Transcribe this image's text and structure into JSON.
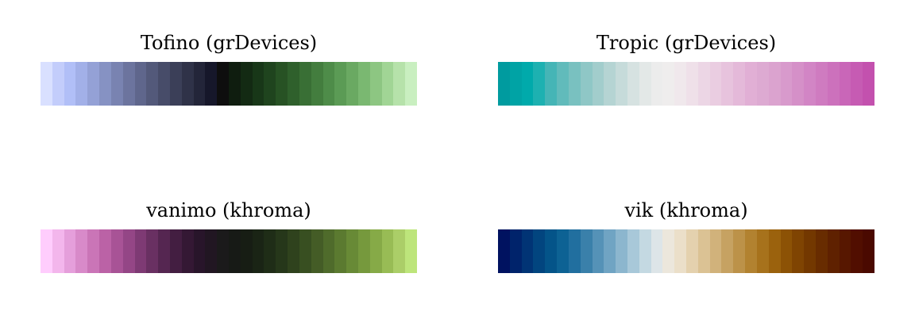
{
  "palettes": [
    {
      "title": "Tofino (grDevices)",
      "colors": [
        "#d9e0ff",
        "#c3cdfb",
        "#b1bff7",
        "#a2b0e8",
        "#94a1d6",
        "#8692c3",
        "#7983b1",
        "#6c749e",
        "#5f668c",
        "#53597a",
        "#474c69",
        "#3b3f58",
        "#2f3248",
        "#232539",
        "#16172a",
        "#0e0e0e",
        "#0f1d0f",
        "#132a13",
        "#183718",
        "#1f441e",
        "#275224",
        "#2f602c",
        "#396f35",
        "#437d3e",
        "#4e8c49",
        "#5b9b55",
        "#6aa962",
        "#7ab871",
        "#8dc682",
        "#a1d595",
        "#b6e2aa",
        "#c9efc0"
      ]
    },
    {
      "title": "Tropic (grDevices)",
      "colors": [
        "#009b9f",
        "#00a3a5",
        "#00aaab",
        "#1db1b1",
        "#45b5b6",
        "#61bbbb",
        "#79c1c0",
        "#8fc7c6",
        "#a2cdcc",
        "#b5d4d3",
        "#c6dbda",
        "#d6e2e1",
        "#e3e8e7",
        "#ececec",
        "#efeded",
        "#f0e8ec",
        "#efe0e9",
        "#ecd6e5",
        "#eacde1",
        "#e7c3dd",
        "#e4b9d9",
        "#e1afd5",
        "#ddaad2",
        "#dba3cf",
        "#d89acc",
        "#d590c8",
        "#d285c5",
        "#cf7bc0",
        "#cc71bc",
        "#c966b8",
        "#c65bb3",
        "#c351ae"
      ]
    },
    {
      "title": "vanimo (khroma)",
      "colors": [
        "#ffcdfd",
        "#f3b6ec",
        "#e59fdb",
        "#d88ac9",
        "#ca75b7",
        "#bb62a6",
        "#a85396",
        "#944686",
        "#7e3a74",
        "#693062",
        "#552651",
        "#431e41",
        "#341834",
        "#28152a",
        "#211622",
        "#1b1a1b",
        "#171a16",
        "#171d14",
        "#1a2415",
        "#1f2d17",
        "#26371a",
        "#2f421d",
        "#384f21",
        "#445c26",
        "#4f6b2b",
        "#5b7a30",
        "#688a36",
        "#76993d",
        "#86aa47",
        "#98bc55",
        "#abce68",
        "#bde57b"
      ]
    },
    {
      "title": "vik (khroma)",
      "colors": [
        "#001260",
        "#00236b",
        "#013475",
        "#02457f",
        "#045489",
        "#0d6294",
        "#216f9f",
        "#3a80aa",
        "#5592b7",
        "#70a4c3",
        "#8cb6ce",
        "#a8c8d9",
        "#c4d9e2",
        "#dde5e8",
        "#ece7dc",
        "#ebdfc9",
        "#e4d1ae",
        "#dbc294",
        "#d1b27b",
        "#c6a262",
        "#bc9249",
        "#b28230",
        "#a7721c",
        "#9b620d",
        "#8c5205",
        "#7f4402",
        "#733800",
        "#682c00",
        "#5f2100",
        "#571700",
        "#510e00",
        "#4a0900"
      ]
    }
  ]
}
